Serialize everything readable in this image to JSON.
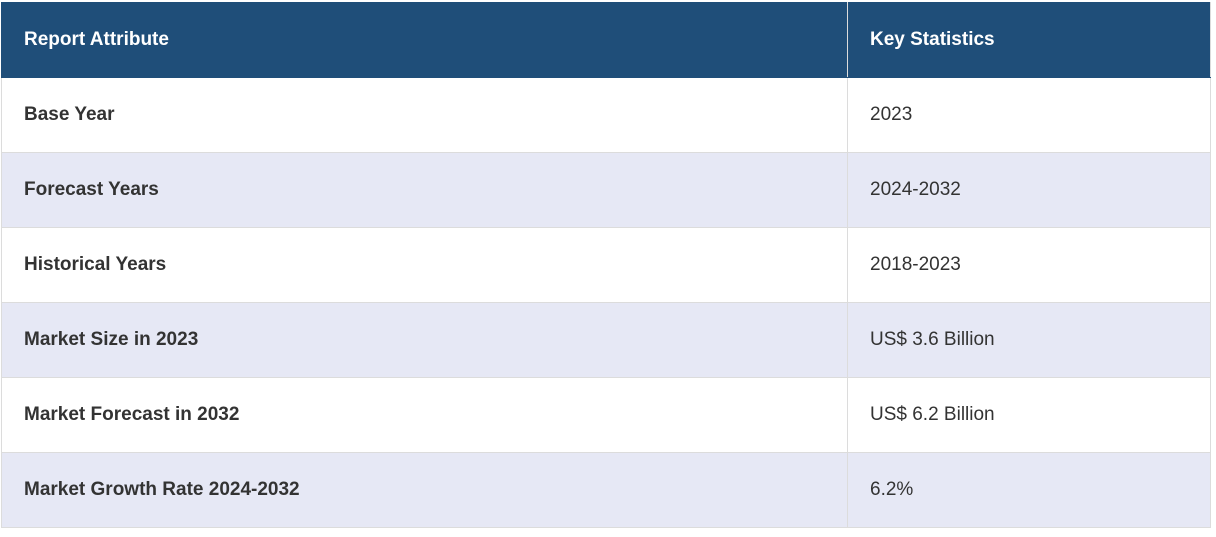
{
  "table": {
    "header": [
      "Report Attribute",
      "Key Statistics"
    ],
    "rows": [
      [
        "Base Year",
        "2023"
      ],
      [
        "Forecast Years",
        "2024-2032"
      ],
      [
        "Historical Years",
        "2018-2023"
      ],
      [
        "Market Size in 2023",
        "US$ 3.6 Billion"
      ],
      [
        "Market Forecast in 2032",
        "US$ 6.2 Billion"
      ],
      [
        "Market Growth Rate 2024-2032",
        "6.2%"
      ]
    ]
  }
}
